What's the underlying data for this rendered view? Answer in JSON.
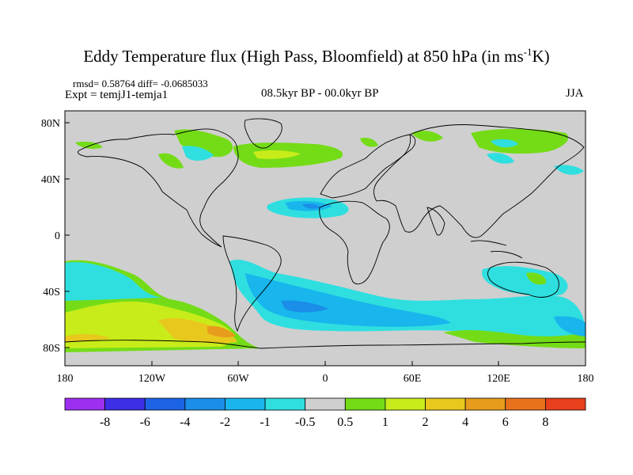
{
  "title": {
    "main": "Eddy Temperature flux (High Pass, Bloomfield) at 850 hPa (in ms",
    "sup": "-1",
    "end": "K)"
  },
  "stats": "rmsd= 0.58764  diff= -0.0685033",
  "experiment": "Expt = temjJ1-temja1",
  "period": "08.5kyr BP - 00.0kyr BP",
  "season": "JJA",
  "axes": {
    "y_ticks": [
      "80N",
      "40N",
      "0",
      "40S",
      "80S"
    ],
    "x_ticks": [
      "180",
      "120W",
      "60W",
      "0",
      "60E",
      "120E",
      "180"
    ]
  },
  "colorbar": {
    "labels": [
      "-8",
      "-6",
      "-4",
      "-2",
      "-1",
      "-0.5",
      "0.5",
      "1",
      "2",
      "4",
      "6",
      "8"
    ],
    "colors": [
      "#9d2ff0",
      "#3d2fe6",
      "#1d63e6",
      "#1a8ee8",
      "#18b6ec",
      "#2fdfe0",
      "#cfcfcf",
      "#74dc17",
      "#c8ec1a",
      "#e8c81c",
      "#e89c1c",
      "#e8721c",
      "#e8401c"
    ]
  },
  "map": {
    "background_color": "#cfcfcf",
    "lon_range": [
      -180,
      180
    ],
    "lat_range": [
      -90,
      90
    ]
  }
}
